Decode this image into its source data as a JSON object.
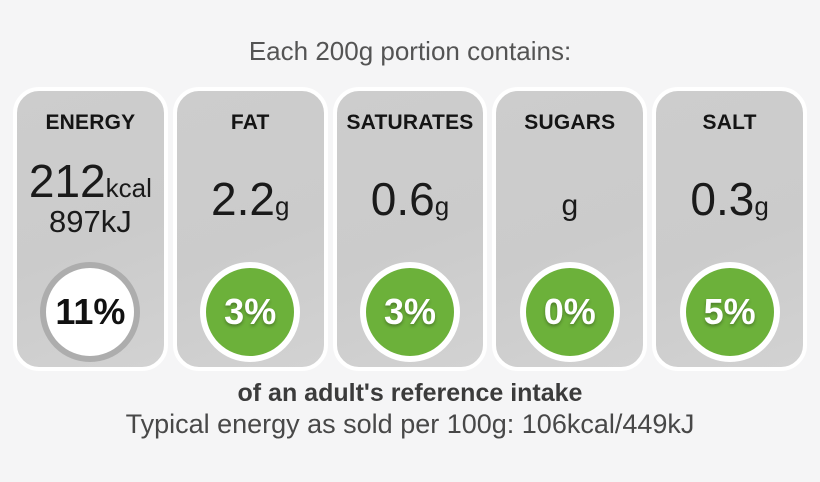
{
  "header": {
    "text": "Each 200g portion contains:"
  },
  "panels": [
    {
      "label": "ENERGY",
      "value": "212",
      "unit": "kcal",
      "secondary_value": "897kJ",
      "percent": "11%",
      "circle_style": "white"
    },
    {
      "label": "FAT",
      "value": "2.2",
      "unit": "g",
      "percent": "3%",
      "circle_style": "green"
    },
    {
      "label": "SATURATES",
      "value": "0.6",
      "unit": "g",
      "percent": "3%",
      "circle_style": "green"
    },
    {
      "label": "SUGARS",
      "value": "",
      "unit": "g",
      "percent": "0%",
      "circle_style": "green"
    },
    {
      "label": "SALT",
      "value": "0.3",
      "unit": "g",
      "percent": "5%",
      "circle_style": "green"
    }
  ],
  "footer": {
    "bold_text": "of an adult's reference intake",
    "note_text": "Typical energy as sold per 100g: 106kcal/449kJ"
  },
  "colors": {
    "page_bg": "#f5f5f6",
    "panel_bg": "#cbcbcb",
    "panel_border": "#ffffff",
    "green": "#6cb13a",
    "energy_circle_ring": "#adadad",
    "energy_circle_bg": "#ffffff",
    "percent_text_on_green": "#ffffff",
    "header_text": "#545454",
    "value_text": "#1a1a1a",
    "footer_text": "#3b3b3b"
  }
}
